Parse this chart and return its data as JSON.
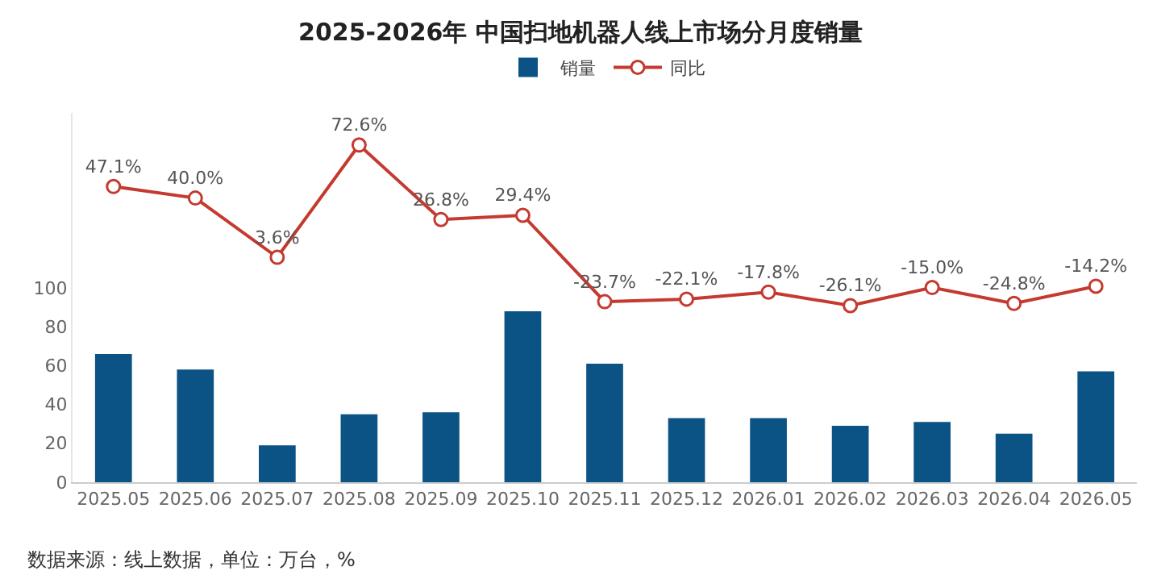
{
  "chart_data": {
    "type": "bar",
    "title": "2025-2026年 中国扫地机器人线上市场分月度销量",
    "categories": [
      "2025.05",
      "2025.06",
      "2025.07",
      "2025.08",
      "2025.09",
      "2025.10",
      "2025.11",
      "2025.12",
      "2026.01",
      "2026.02",
      "2026.03",
      "2026.04",
      "2026.05"
    ],
    "series": [
      {
        "name": "销量",
        "color": "#0b5285",
        "values": [
          66,
          58,
          19,
          35,
          36,
          88,
          61,
          33,
          33,
          29,
          31,
          25,
          57
        ]
      },
      {
        "name": "同比",
        "type": "line",
        "axis": "y2",
        "color": "#c43a30",
        "marker": "circle",
        "values": [
          47.1,
          40.0,
          3.6,
          72.6,
          26.8,
          29.4,
          -23.7,
          -22.1,
          -17.8,
          -26.1,
          -15.0,
          -24.8,
          -14.2
        ],
        "value_labels": [
          "47.1%",
          "40.0%",
          "3.6%",
          "72.6%",
          "26.8%",
          "29.4%",
          "-23.7%",
          "-22.1%",
          "-17.8%",
          "-26.1%",
          "-15.0%",
          "-24.8%",
          "-14.2%"
        ]
      }
    ],
    "ylim": [
      0,
      190
    ],
    "yticks": [
      0,
      20,
      40,
      60,
      80,
      100
    ],
    "grid": false,
    "legend": "top",
    "annotations": [
      "数据来源：线上数据，单位：万台，%"
    ]
  }
}
